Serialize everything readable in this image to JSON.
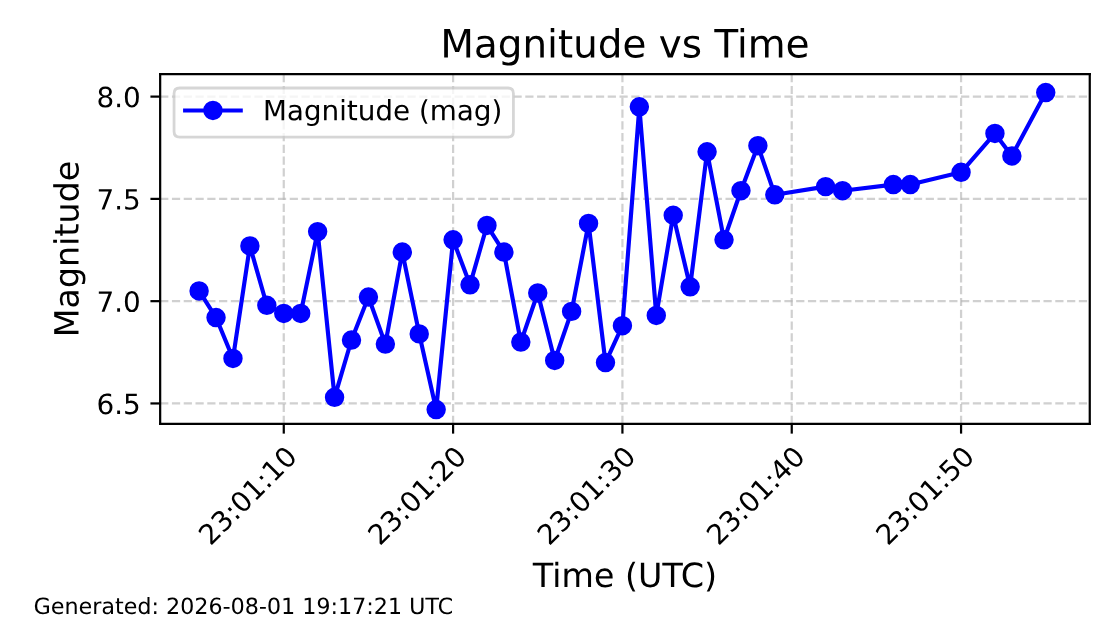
{
  "chart_data": {
    "type": "line",
    "title": "Magnitude vs Time",
    "xlabel": "Time (UTC)",
    "ylabel": "Magnitude",
    "x": [
      "2026-08-01T23:01:05",
      "2026-08-01T23:01:06",
      "2026-08-01T23:01:07",
      "2026-08-01T23:01:08",
      "2026-08-01T23:01:09",
      "2026-08-01T23:01:10",
      "2026-08-01T23:01:11",
      "2026-08-01T23:01:12",
      "2026-08-01T23:01:13",
      "2026-08-01T23:01:14",
      "2026-08-01T23:01:15",
      "2026-08-01T23:01:16",
      "2026-08-01T23:01:17",
      "2026-08-01T23:01:18",
      "2026-08-01T23:01:19",
      "2026-08-01T23:01:20",
      "2026-08-01T23:01:21",
      "2026-08-01T23:01:22",
      "2026-08-01T23:01:23",
      "2026-08-01T23:01:24",
      "2026-08-01T23:01:25",
      "2026-08-01T23:01:26",
      "2026-08-01T23:01:27",
      "2026-08-01T23:01:28",
      "2026-08-01T23:01:29",
      "2026-08-01T23:01:30",
      "2026-08-01T23:01:31",
      "2026-08-01T23:01:32",
      "2026-08-01T23:01:33",
      "2026-08-01T23:01:34",
      "2026-08-01T23:01:35",
      "2026-08-01T23:01:36",
      "2026-08-01T23:01:37",
      "2026-08-01T23:01:38",
      "2026-08-01T23:01:39",
      "2026-08-01T23:01:42",
      "2026-08-01T23:01:43",
      "2026-08-01T23:01:46",
      "2026-08-01T23:01:47",
      "2026-08-01T23:01:50",
      "2026-08-01T23:01:52",
      "2026-08-01T23:01:53",
      "2026-08-01T23:01:55"
    ],
    "series": [
      {
        "name": "Magnitude (mag)",
        "color": "#0000ff",
        "values": [
          7.05,
          6.92,
          6.72,
          7.27,
          6.98,
          6.94,
          6.94,
          7.34,
          6.53,
          6.81,
          7.02,
          6.79,
          7.24,
          6.84,
          6.47,
          7.3,
          7.08,
          7.37,
          7.24,
          6.8,
          7.04,
          6.71,
          6.95,
          7.38,
          6.7,
          6.88,
          7.95,
          6.93,
          7.42,
          7.07,
          7.73,
          7.3,
          7.54,
          7.76,
          7.52,
          7.56,
          7.54,
          7.57,
          7.57,
          7.63,
          7.82,
          7.71,
          8.02
        ]
      }
    ],
    "xlim": [
      "2026-08-01T23:01:02.7",
      "2026-08-01T23:01:57.6"
    ],
    "xticks": [
      {
        "value": "2026-08-01T23:01:10",
        "label": "23:01:10"
      },
      {
        "value": "2026-08-01T23:01:20",
        "label": "23:01:20"
      },
      {
        "value": "2026-08-01T23:01:30",
        "label": "23:01:30"
      },
      {
        "value": "2026-08-01T23:01:40",
        "label": "23:01:40"
      },
      {
        "value": "2026-08-01T23:01:50",
        "label": "23:01:50"
      }
    ],
    "ylim": [
      6.4,
      8.11
    ],
    "yticks": [
      {
        "value": 6.5,
        "label": "6.5"
      },
      {
        "value": 7.0,
        "label": "7.0"
      },
      {
        "value": 7.5,
        "label": "7.5"
      },
      {
        "value": 8.0,
        "label": "8.0"
      }
    ],
    "grid": true,
    "legend": "top left",
    "marker": "circle",
    "line_style": "solid",
    "annotations": [
      "Generated: 2026-08-01 19:17:21 UTC"
    ]
  }
}
